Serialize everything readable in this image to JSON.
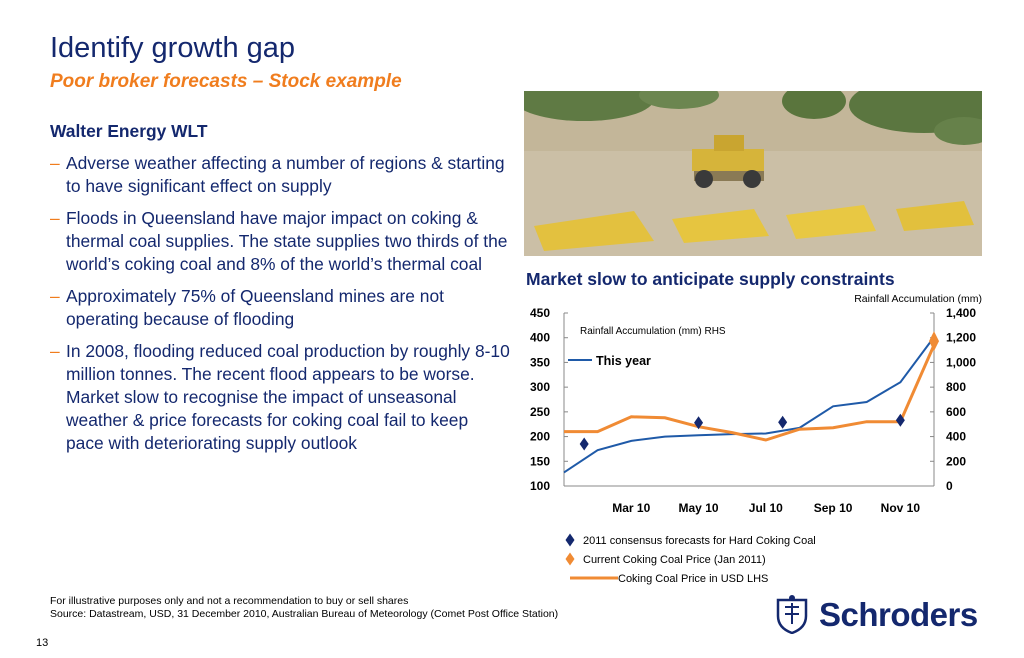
{
  "slide": {
    "title": "Identify growth gap",
    "subtitle": "Poor broker forecasts – Stock example",
    "company": "Walter Energy WLT",
    "bullet_marker": "–",
    "bullets": [
      "Adverse weather affecting a number of regions & starting to have significant effect on supply",
      "Floods in Queensland have major impact on coking & thermal coal supplies. The state supplies two thirds of the world’s coking coal and 8% of the world’s thermal coal",
      "Approximately 75% of Queensland mines are not operating because of flooding",
      "In 2008, flooding reduced coal production by roughly 8-10 million tonnes. The recent flood appears to be worse. Market slow to recognise the impact of unseasonal weather & price forecasts for coking coal fail to keep pace with deteriorating supply outlook"
    ],
    "footnote_1": "For illustrative purposes only and not a recommendation to buy or sell shares",
    "footnote_2": "Source: Datastream, USD, 31 December 2010, Australian Bureau of Meteorology (Comet Post Office Station)",
    "page_number": "13",
    "logo_text": "Schroders"
  },
  "colors": {
    "navy": "#14286e",
    "orange": "#f07d1e",
    "rain_line": "#1f5aa8",
    "price_line": "#f08b34",
    "forecast_marker": "#14286e"
  },
  "chart_data": {
    "type": "line",
    "title": "Market slow to anticipate supply constraints",
    "right_axis_title": "Rainfall Accumulation (mm)",
    "annotation": "Rainfall Accumulation (mm) RHS",
    "inline_legend": "This year",
    "x_tick_labels": [
      "Mar 10",
      "May 10",
      "Jul 10",
      "Sep 10",
      "Nov 10"
    ],
    "left_axis": {
      "ylim": [
        100,
        450
      ],
      "ticks": [
        "450",
        "400",
        "350",
        "300",
        "250",
        "200",
        "150",
        "100"
      ]
    },
    "right_axis": {
      "ylim": [
        0,
        1400
      ],
      "ticks": [
        "1,400",
        "1,200",
        "1,000",
        "800",
        "600",
        "400",
        "200",
        "0"
      ]
    },
    "grid": false,
    "series": [
      {
        "name": "This year",
        "axis": "right",
        "x": [
          1,
          2,
          3,
          4,
          5,
          6,
          7,
          8,
          9,
          10,
          11,
          12
        ],
        "y": [
          110,
          290,
          365,
          400,
          410,
          420,
          425,
          470,
          645,
          680,
          840,
          1205
        ]
      },
      {
        "name": "Coking Coal Price in USD LHS",
        "axis": "left",
        "x": [
          1,
          2,
          3,
          4,
          5,
          6,
          7,
          8,
          9,
          10,
          11,
          12
        ],
        "y": [
          210,
          210,
          240,
          238,
          220,
          208,
          193,
          215,
          218,
          230,
          230,
          385
        ]
      },
      {
        "name": "2011 consensus forecasts for Hard Coking Coal",
        "axis": "left",
        "marker": "diamond",
        "x": [
          1.6,
          5.0,
          7.5,
          11.0
        ],
        "y": [
          185,
          228,
          229,
          233
        ]
      },
      {
        "name": "Current Coking Coal Price (Jan 2011)",
        "axis": "left",
        "marker": "diamond",
        "x": [
          12
        ],
        "y": [
          393
        ]
      }
    ],
    "legend": [
      {
        "label": "2011 consensus forecasts for Hard Coking Coal",
        "symbol": "diamond",
        "color": "#14286e"
      },
      {
        "label": "Current Coking Coal Price (Jan 2011)",
        "symbol": "diamond",
        "color": "#f08b34"
      },
      {
        "label": "Coking Coal Price in USD LHS",
        "symbol": "line",
        "color": "#f08b34"
      }
    ]
  }
}
